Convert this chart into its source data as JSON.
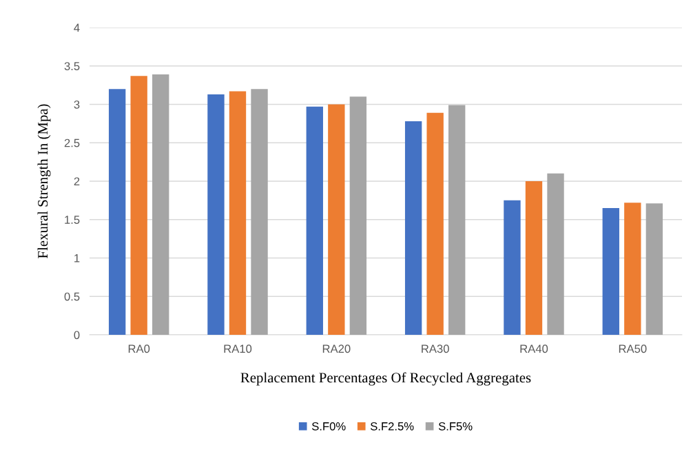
{
  "chart_data": {
    "type": "bar",
    "xlabel": "Replacement Percentages Of Recycled Aggregates",
    "ylabel": "Flexural Strength In (Mpa)",
    "categories": [
      "RA0",
      "RA10",
      "RA20",
      "RA30",
      "RA40",
      "RA50"
    ],
    "series": [
      {
        "name": "S.F0%",
        "color": "#4472c4",
        "values": [
          3.2,
          3.13,
          2.97,
          2.78,
          1.75,
          1.65
        ]
      },
      {
        "name": "S.F2.5%",
        "color": "#ed7d31",
        "values": [
          3.37,
          3.17,
          3.0,
          2.89,
          2.0,
          1.72
        ]
      },
      {
        "name": "S.F5%",
        "color": "#a5a5a5",
        "values": [
          3.39,
          3.2,
          3.1,
          2.99,
          2.1,
          1.71
        ]
      }
    ],
    "ylim": [
      0,
      4
    ],
    "yticks": [
      0,
      0.5,
      1,
      1.5,
      2,
      2.5,
      3,
      3.5,
      4
    ],
    "grid": "y",
    "legend": "bottom"
  }
}
